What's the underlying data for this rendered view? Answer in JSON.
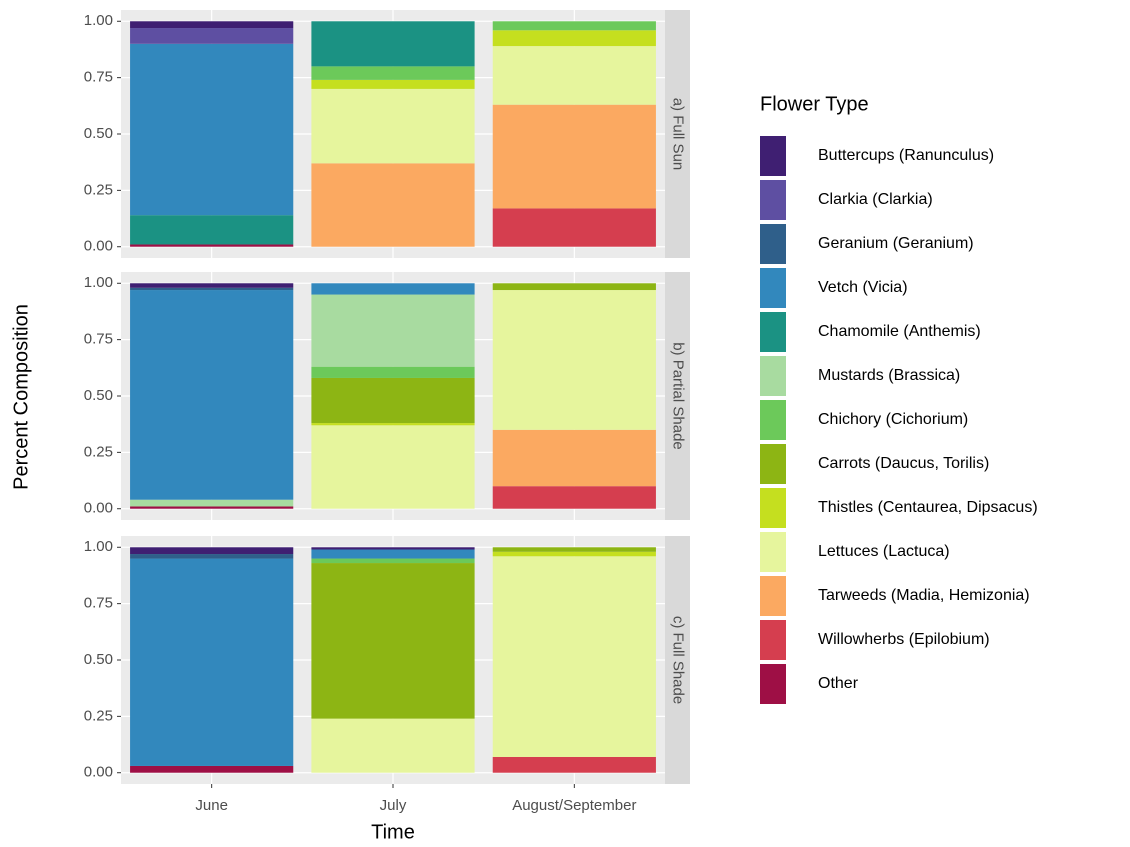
{
  "chart_data": {
    "type": "bar",
    "stacked": true,
    "x_label": "Time",
    "y_label": "Percent Composition",
    "legend_title": "Flower Type",
    "legend_position": "right",
    "grid": true,
    "categories": [
      "June",
      "July",
      "August/September"
    ],
    "ylim": [
      -0.05,
      1.05
    ],
    "yticks": [
      {
        "value": 0,
        "label": "0.00"
      },
      {
        "value": 0.25,
        "label": "0.25"
      },
      {
        "value": 0.5,
        "label": "0.50"
      },
      {
        "value": 0.75,
        "label": "0.75"
      },
      {
        "value": 1,
        "label": "1.00"
      }
    ],
    "series": [
      {
        "name": "Buttercups (Ranunculus)",
        "color": "#3f1f72"
      },
      {
        "name": "Clarkia (Clarkia)",
        "color": "#5e4fa2"
      },
      {
        "name": "Geranium (Geranium)",
        "color": "#2f5f8a"
      },
      {
        "name": "Vetch (Vicia)",
        "color": "#3288bd"
      },
      {
        "name": "Chamomile (Anthemis)",
        "color": "#1b9283"
      },
      {
        "name": "Mustards (Brassica)",
        "color": "#a8dba0"
      },
      {
        "name": "Chichory (Cichorium)",
        "color": "#6cc95a"
      },
      {
        "name": "Carrots (Daucus, Torilis)",
        "color": "#8db514"
      },
      {
        "name": "Thistles (Centaurea, Dipsacus)",
        "color": "#c5df1f"
      },
      {
        "name": "Lettuces (Lactuca)",
        "color": "#e6f59d"
      },
      {
        "name": "Tarweeds (Madia, Hemizonia)",
        "color": "#fba961"
      },
      {
        "name": "Willowherbs (Epilobium)",
        "color": "#d53e4f"
      },
      {
        "name": "Other",
        "color": "#9e0f45"
      }
    ],
    "facets": [
      {
        "label": "a) Full Sun",
        "values": [
          [
            0.03,
            0,
            0
          ],
          [
            0.07,
            0,
            0
          ],
          [
            0,
            0,
            0
          ],
          [
            0.76,
            0,
            0
          ],
          [
            0.13,
            0.2,
            0
          ],
          [
            0,
            0,
            0
          ],
          [
            0,
            0.06,
            0.04
          ],
          [
            0,
            0,
            0
          ],
          [
            0,
            0.04,
            0.07
          ],
          [
            0,
            0.33,
            0.26
          ],
          [
            0,
            0.37,
            0.46
          ],
          [
            0,
            0,
            0.17
          ],
          [
            0.01,
            0,
            0
          ]
        ]
      },
      {
        "label": "b) Partial Shade",
        "values": [
          [
            0.02,
            0,
            0
          ],
          [
            0,
            0,
            0
          ],
          [
            0.01,
            0,
            0
          ],
          [
            0.93,
            0.05,
            0
          ],
          [
            0,
            0,
            0
          ],
          [
            0.03,
            0.32,
            0
          ],
          [
            0,
            0.05,
            0
          ],
          [
            0,
            0.2,
            0.03
          ],
          [
            0,
            0.01,
            0
          ],
          [
            0,
            0.37,
            0.62
          ],
          [
            0,
            0,
            0.25
          ],
          [
            0,
            0,
            0.1
          ],
          [
            0.01,
            0,
            0
          ]
        ]
      },
      {
        "label": "c) Full Shade",
        "values": [
          [
            0.03,
            0.01,
            0
          ],
          [
            0,
            0,
            0
          ],
          [
            0.02,
            0,
            0
          ],
          [
            0.92,
            0.04,
            0
          ],
          [
            0,
            0,
            0
          ],
          [
            0,
            0,
            0
          ],
          [
            0,
            0.02,
            0
          ],
          [
            0,
            0.69,
            0.02
          ],
          [
            0,
            0,
            0.02
          ],
          [
            0,
            0.24,
            0.89
          ],
          [
            0,
            0,
            0
          ],
          [
            0,
            0,
            0.07
          ],
          [
            0.03,
            0,
            0
          ]
        ]
      }
    ]
  }
}
